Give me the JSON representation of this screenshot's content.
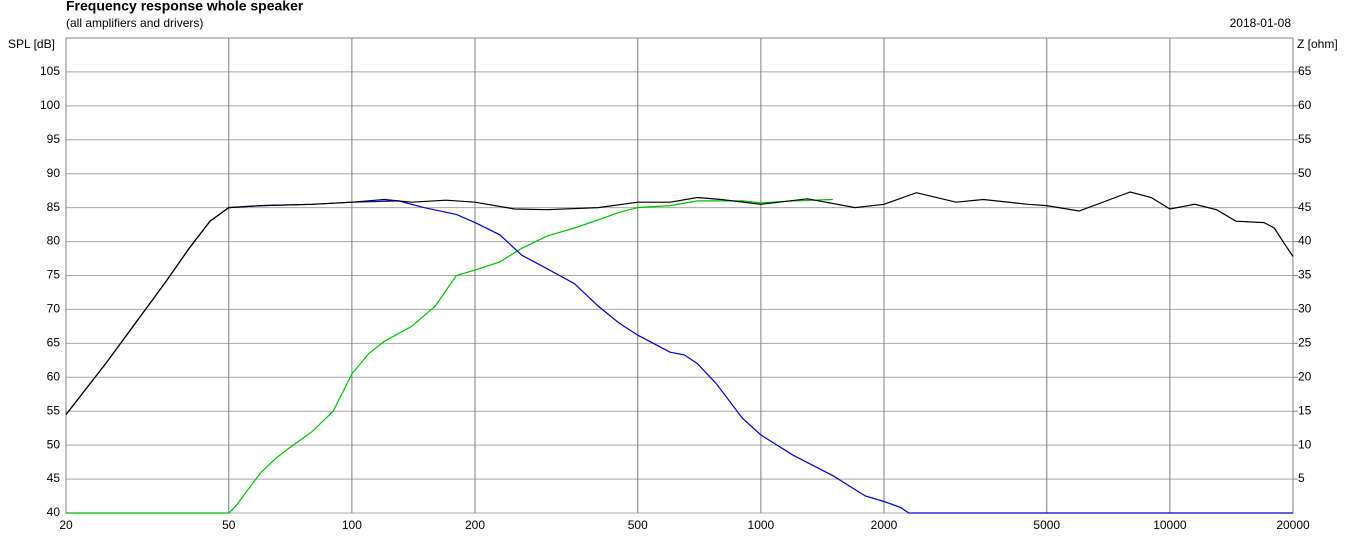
{
  "chart_data": {
    "type": "line",
    "title": "Frequency response whole speaker",
    "subtitle": "(all amplifiers and drivers)",
    "date": "2018-01-08",
    "y_label": "SPL [dB]",
    "y2_label": "Z [ohm]",
    "log_x": true,
    "grid": true,
    "xlim": [
      20,
      20000
    ],
    "xticks": [
      20,
      50,
      100,
      200,
      500,
      1000,
      2000,
      5000,
      10000,
      20000
    ],
    "ylim": [
      40,
      110
    ],
    "yticks": [
      40,
      45,
      50,
      55,
      60,
      65,
      70,
      75,
      80,
      85,
      90,
      95,
      100,
      105
    ],
    "y2lim": [
      0,
      70
    ],
    "y2ticks": [
      5,
      10,
      15,
      20,
      25,
      30,
      35,
      40,
      45,
      50,
      55,
      60,
      65
    ],
    "series": [
      {
        "color": "#00c000",
        "x": [
          20,
          50,
          52,
          55,
          60,
          65,
          70,
          80,
          90,
          100,
          110,
          120,
          140,
          160,
          180,
          200,
          230,
          260,
          300,
          350,
          400,
          450,
          500,
          600,
          700,
          900,
          1000,
          1200,
          1500
        ],
        "values": [
          40,
          40,
          41,
          43,
          46,
          48,
          49.5,
          52,
          55,
          60.5,
          63.5,
          65.3,
          67.5,
          70.5,
          75,
          75.8,
          77,
          79,
          80.8,
          82,
          83.2,
          84.3,
          85,
          85.3,
          86,
          86,
          85.7,
          86,
          86.2
        ]
      },
      {
        "color": "#0000d0",
        "x": [
          20,
          25,
          30,
          35,
          40,
          45,
          50,
          60,
          80,
          100,
          130,
          150,
          180,
          200,
          230,
          260,
          300,
          350,
          400,
          450,
          500,
          600,
          650,
          700,
          780,
          900,
          1000,
          1200,
          1500,
          1800,
          2000,
          2200,
          2300,
          20000
        ],
        "values": [
          54.5,
          62,
          68.5,
          74,
          79,
          83,
          85,
          85.3,
          85.5,
          85.8,
          86,
          85,
          84,
          82.8,
          81,
          78,
          76,
          73.8,
          70.5,
          68,
          66.2,
          63.7,
          63.3,
          62,
          59,
          54,
          51.5,
          48.5,
          45.5,
          42.5,
          41.7,
          40.8,
          40,
          40
        ]
      },
      {
        "color": "#000000",
        "x": [
          20,
          25,
          30,
          35,
          40,
          45,
          50,
          60,
          80,
          100,
          120,
          140,
          170,
          200,
          250,
          300,
          400,
          500,
          600,
          700,
          800,
          1000,
          1300,
          1700,
          2000,
          2400,
          3000,
          3500,
          4500,
          5000,
          6000,
          8000,
          9000,
          10000,
          11500,
          13000,
          14500,
          17000,
          18000,
          19000,
          20000
        ],
        "values": [
          54.5,
          62,
          68.5,
          74,
          79,
          83,
          85,
          85.3,
          85.5,
          85.8,
          86.2,
          85.8,
          86.1,
          85.8,
          84.8,
          84.7,
          85,
          85.8,
          85.8,
          86.5,
          86.2,
          85.5,
          86.3,
          85,
          85.5,
          87.2,
          85.8,
          86.2,
          85.5,
          85.3,
          84.5,
          87.3,
          86.5,
          84.8,
          85.5,
          84.7,
          83,
          82.8,
          82,
          79.8,
          77.8
        ]
      }
    ]
  }
}
